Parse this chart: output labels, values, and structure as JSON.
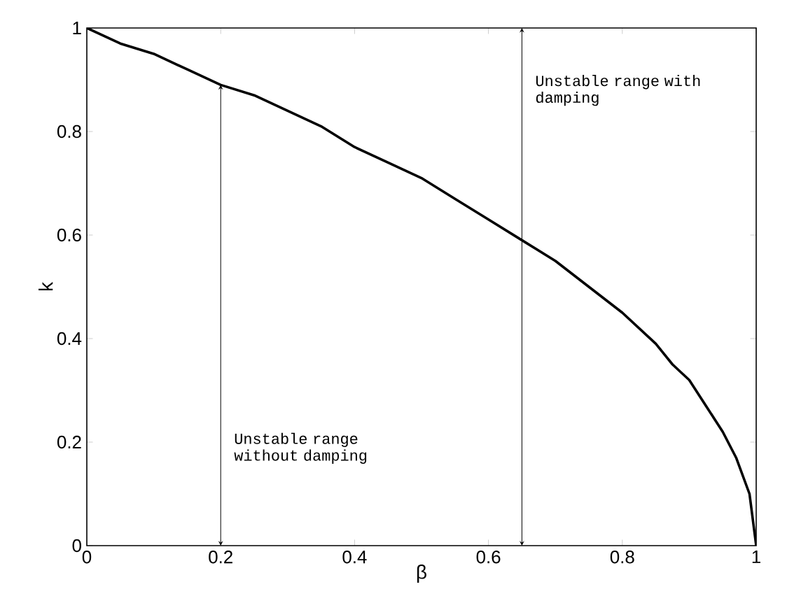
{
  "chart_data": {
    "type": "line",
    "xlabel": "β",
    "ylabel": "k",
    "x": [
      0,
      0.05,
      0.1,
      0.15,
      0.2,
      0.25,
      0.3,
      0.35,
      0.4,
      0.45,
      0.5,
      0.55,
      0.6,
      0.65,
      0.7,
      0.75,
      0.8,
      0.85,
      0.875,
      0.9,
      0.925,
      0.95,
      0.97,
      0.99,
      1.0
    ],
    "series": [
      {
        "color": "#000000",
        "values": [
          1,
          0.97,
          0.95,
          0.92,
          0.89,
          0.87,
          0.84,
          0.81,
          0.77,
          0.74,
          0.71,
          0.67,
          0.63,
          0.59,
          0.55,
          0.5,
          0.45,
          0.39,
          0.35,
          0.32,
          0.27,
          0.22,
          0.17,
          0.1,
          0
        ]
      }
    ],
    "xlim": [
      0,
      1
    ],
    "ylim": [
      0,
      1
    ],
    "xticks": [
      0,
      0.2,
      0.4,
      0.6,
      0.8,
      1
    ],
    "yticks": [
      0,
      0.2,
      0.4,
      0.6,
      0.8,
      1
    ],
    "grid": false,
    "marker": "none",
    "line_style": "solid",
    "ref_lines": [
      {
        "axis": "x",
        "value": 0.65,
        "label": "Unstable range with damping"
      },
      {
        "axis": "x",
        "value": 0.2,
        "label": "Unstable range without damping"
      }
    ]
  }
}
